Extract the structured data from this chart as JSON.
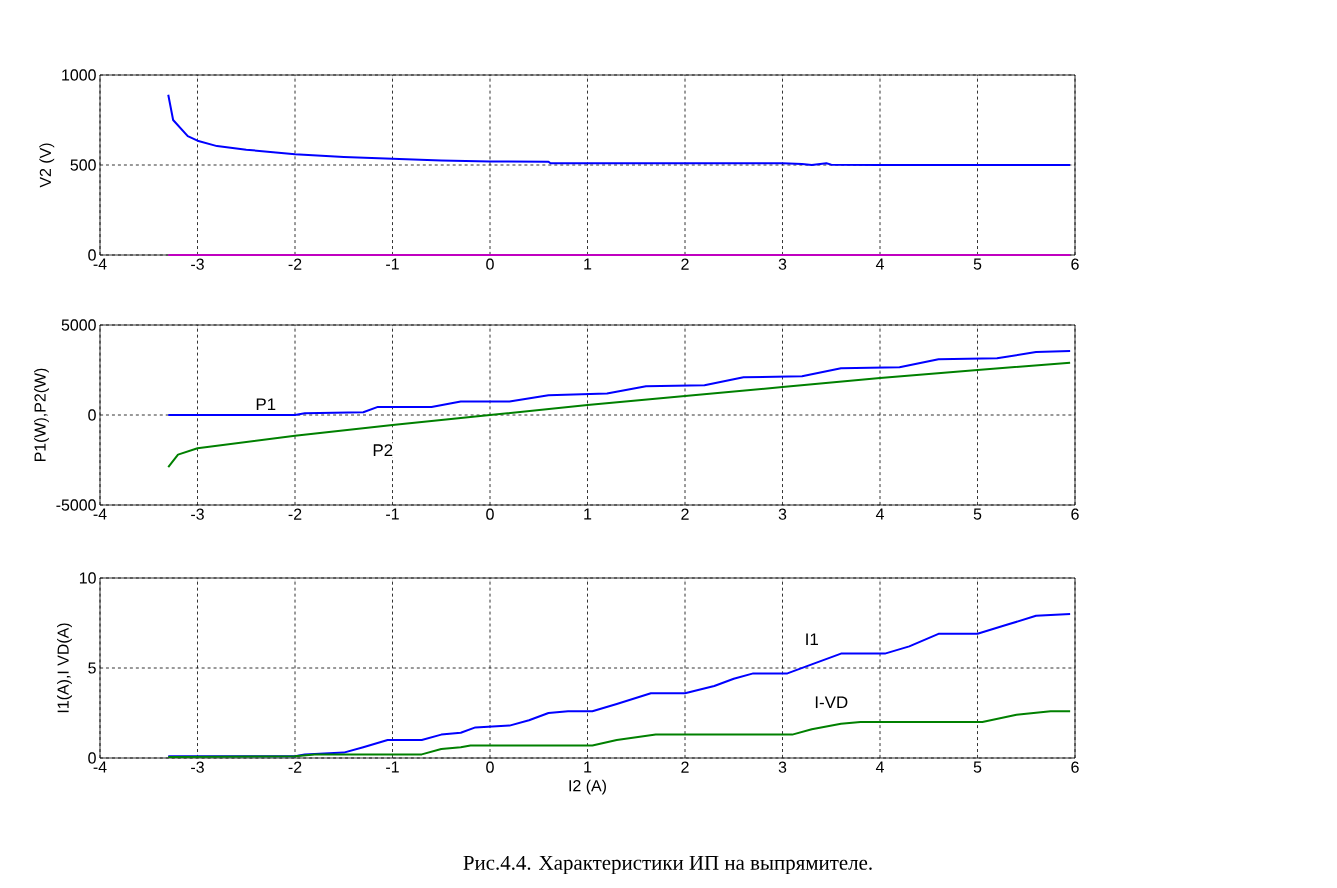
{
  "chart_data": [
    {
      "type": "line",
      "ylabel": "V2 (V)",
      "xlim": [
        -4,
        6
      ],
      "xticks": [
        -4,
        -3,
        -2,
        -1,
        0,
        1,
        2,
        3,
        4,
        5,
        6
      ],
      "ylim": [
        0,
        1000
      ],
      "yticks": [
        0,
        500,
        1000
      ],
      "grid": true,
      "line_style": "solid",
      "series": [
        {
          "color": "#0000ff",
          "x": [
            -3.3,
            -3.25,
            -3.1,
            -3,
            -2.8,
            -2.5,
            -2,
            -1.5,
            -1,
            -0.5,
            0,
            0.6,
            0.62,
            1,
            2,
            3,
            3.2,
            3.3,
            3.45,
            3.5,
            4,
            5,
            5.95
          ],
          "values": [
            890,
            750,
            660,
            635,
            605,
            585,
            560,
            545,
            535,
            525,
            520,
            518,
            510,
            510,
            510,
            510,
            505,
            500,
            510,
            502,
            500,
            500,
            500
          ]
        },
        {
          "color": "#c000c0",
          "x": [
            -3.3,
            5.95
          ],
          "values": [
            0,
            0
          ]
        }
      ]
    },
    {
      "type": "line",
      "ylabel": "P1(W),P2(W)",
      "xlim": [
        -4,
        6
      ],
      "xticks": [
        -4,
        -3,
        -2,
        -1,
        0,
        1,
        2,
        3,
        4,
        5,
        6
      ],
      "ylim": [
        -5000,
        5000
      ],
      "yticks": [
        -5000,
        0,
        5000
      ],
      "grid": true,
      "line_style": "solid",
      "series": [
        {
          "color": "#0000ff",
          "x": [
            -3.3,
            -2,
            -1.9,
            -1.3,
            -1.15,
            -0.6,
            -0.3,
            0.2,
            0.6,
            1.2,
            1.6,
            2.2,
            2.6,
            3.2,
            3.6,
            4.2,
            4.6,
            5.2,
            5.6,
            5.95
          ],
          "values": [
            0,
            0,
            100,
            150,
            450,
            450,
            750,
            750,
            1100,
            1200,
            1600,
            1650,
            2100,
            2150,
            2600,
            2650,
            3100,
            3150,
            3500,
            3550
          ]
        },
        {
          "color": "#008000",
          "x": [
            -3.3,
            -3.2,
            -3,
            -2,
            -1,
            0,
            1,
            2,
            3,
            4,
            5,
            5.95
          ],
          "values": [
            -2900,
            -2200,
            -1850,
            -1150,
            -550,
            0,
            550,
            1050,
            1550,
            2050,
            2500,
            2900
          ]
        }
      ],
      "annotations": [
        {
          "text": "P1",
          "x": -2.3,
          "y": 600
        },
        {
          "text": "P2",
          "x": -1.1,
          "y": -1950
        }
      ]
    },
    {
      "type": "line",
      "xlabel": "I2 (A)",
      "ylabel": "I1(A),I VD(A)",
      "xlim": [
        -4,
        6
      ],
      "xticks": [
        -4,
        -3,
        -2,
        -1,
        0,
        1,
        2,
        3,
        4,
        5,
        6
      ],
      "ylim": [
        0,
        10
      ],
      "yticks": [
        0,
        5,
        10
      ],
      "grid": true,
      "line_style": "solid",
      "series": [
        {
          "color": "#0000ff",
          "x": [
            -3.3,
            -2,
            -1.9,
            -1.5,
            -1.3,
            -1.05,
            -0.7,
            -0.5,
            -0.3,
            -0.15,
            0.2,
            0.4,
            0.6,
            0.8,
            1.05,
            1.3,
            1.65,
            2,
            2.3,
            2.5,
            2.7,
            3.05,
            3.3,
            3.6,
            4.05,
            4.3,
            4.6,
            5,
            5.3,
            5.6,
            5.95
          ],
          "values": [
            0.1,
            0.1,
            0.2,
            0.3,
            0.6,
            1.0,
            1.0,
            1.3,
            1.4,
            1.7,
            1.8,
            2.1,
            2.5,
            2.6,
            2.6,
            3.0,
            3.6,
            3.6,
            4.0,
            4.4,
            4.7,
            4.7,
            5.2,
            5.8,
            5.8,
            6.2,
            6.9,
            6.9,
            7.4,
            7.9,
            8.0
          ]
        },
        {
          "color": "#008000",
          "x": [
            -3.3,
            -2,
            -1.8,
            -0.7,
            -0.5,
            -0.3,
            -0.2,
            1.05,
            1.3,
            1.7,
            3.1,
            3.3,
            3.6,
            3.8,
            5.05,
            5.4,
            5.75,
            5.95
          ],
          "values": [
            0.05,
            0.1,
            0.2,
            0.2,
            0.5,
            0.6,
            0.7,
            0.7,
            1.0,
            1.3,
            1.3,
            1.6,
            1.9,
            2.0,
            2.0,
            2.4,
            2.6,
            2.6
          ]
        }
      ],
      "annotations": [
        {
          "text": "I1",
          "x": 3.3,
          "y": 6.6
        },
        {
          "text": "I-VD",
          "x": 3.5,
          "y": 3.1
        },
        "Рис.4.4. Характеристики ИП на выпрямителе."
      ]
    }
  ]
}
